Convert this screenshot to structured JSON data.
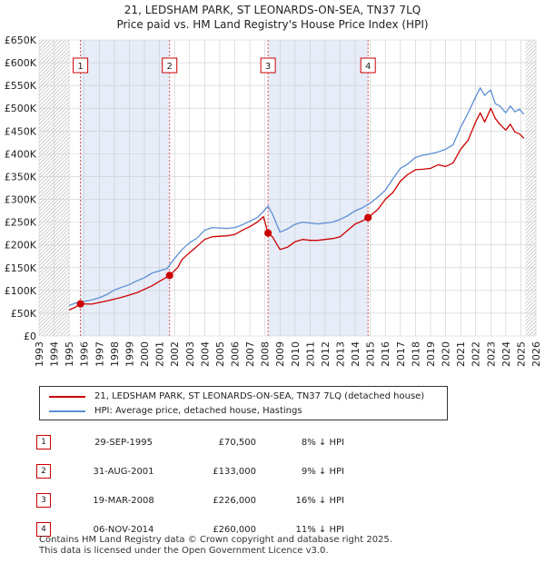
{
  "title_line1": "21, LEDSHAM PARK, ST LEONARDS-ON-SEA, TN37 7LQ",
  "title_line2": "Price paid vs. HM Land Registry's House Price Index (HPI)",
  "chart_data": {
    "type": "line",
    "title": "21, LEDSHAM PARK, ST LEONARDS-ON-SEA, TN37 7LQ",
    "subtitle": "Price paid vs. HM Land Registry's House Price Index (HPI)",
    "xlabel": "",
    "ylabel": "",
    "xlim": [
      1993,
      2026
    ],
    "ylim": [
      0,
      650000
    ],
    "y_ticks": [
      0,
      50000,
      100000,
      150000,
      200000,
      250000,
      300000,
      350000,
      400000,
      450000,
      500000,
      550000,
      600000,
      650000
    ],
    "y_tick_labels": [
      "£0",
      "£50K",
      "£100K",
      "£150K",
      "£200K",
      "£250K",
      "£300K",
      "£350K",
      "£400K",
      "£450K",
      "£500K",
      "£550K",
      "£600K",
      "£650K"
    ],
    "x_ticks": [
      1993,
      1994,
      1995,
      1996,
      1997,
      1998,
      1999,
      2000,
      2001,
      2002,
      2003,
      2004,
      2005,
      2006,
      2007,
      2008,
      2009,
      2010,
      2011,
      2012,
      2013,
      2014,
      2015,
      2016,
      2017,
      2018,
      2019,
      2020,
      2021,
      2022,
      2023,
      2024,
      2025,
      2026
    ],
    "data_range": [
      1995.0,
      2025.3
    ],
    "shaded_periods": [
      [
        1995.75,
        2001.67
      ],
      [
        2008.21,
        2014.85
      ]
    ],
    "grid": true,
    "legend_position": "below",
    "series": [
      {
        "name": "21, LEDSHAM PARK, ST LEONARDS-ON-SEA, TN37 7LQ (detached house)",
        "color": "#cc0000",
        "x": [
          1995.0,
          1995.4,
          1995.75,
          1996.5,
          1997.5,
          1998.5,
          1999.5,
          2000.5,
          2001.0,
          2001.67,
          2002.2,
          2002.5,
          2003.0,
          2003.5,
          2004.0,
          2004.5,
          2005.0,
          2005.5,
          2006.0,
          2006.5,
          2007.0,
          2007.5,
          2007.9,
          2008.21,
          2008.5,
          2009.0,
          2009.5,
          2010.0,
          2010.5,
          2011.0,
          2011.5,
          2012.0,
          2012.5,
          2013.0,
          2013.5,
          2014.0,
          2014.5,
          2014.85,
          2015.5,
          2016.0,
          2016.5,
          2017.0,
          2017.5,
          2018.0,
          2018.5,
          2019.0,
          2019.5,
          2020.0,
          2020.5,
          2021.0,
          2021.5,
          2022.0,
          2022.3,
          2022.6,
          2022.8,
          2023.0,
          2023.3,
          2023.6,
          2024.0,
          2024.3,
          2024.6,
          2024.9,
          2025.2
        ],
        "y": [
          57000,
          63000,
          70500,
          70000,
          77000,
          85000,
          95000,
          110000,
          120000,
          133000,
          150000,
          168000,
          183000,
          197000,
          212000,
          218000,
          219000,
          220000,
          223000,
          232000,
          240000,
          250000,
          262000,
          226000,
          218000,
          190000,
          195000,
          207000,
          212000,
          210000,
          210000,
          212000,
          214000,
          218000,
          232000,
          246000,
          253000,
          260000,
          278000,
          300000,
          315000,
          340000,
          355000,
          365000,
          366000,
          368000,
          376000,
          372000,
          380000,
          410000,
          430000,
          470000,
          490000,
          470000,
          485000,
          500000,
          478000,
          465000,
          452000,
          465000,
          448000,
          444000,
          434000
        ]
      },
      {
        "name": "HPI: Average price, detached house, Hastings",
        "color": "#5b8fd6",
        "x": [
          1995.0,
          1995.5,
          1996.0,
          1996.5,
          1997.0,
          1997.5,
          1998.0,
          1998.5,
          1999.0,
          1999.5,
          2000.0,
          2000.5,
          2001.0,
          2001.5,
          2002.0,
          2002.5,
          2003.0,
          2003.5,
          2004.0,
          2004.5,
          2005.0,
          2005.5,
          2006.0,
          2006.5,
          2007.0,
          2007.5,
          2007.8,
          2008.2,
          2008.5,
          2009.0,
          2009.5,
          2010.0,
          2010.5,
          2011.0,
          2011.5,
          2012.0,
          2012.5,
          2013.0,
          2013.5,
          2014.0,
          2014.5,
          2015.0,
          2015.5,
          2016.0,
          2016.5,
          2017.0,
          2017.5,
          2018.0,
          2018.5,
          2019.0,
          2019.5,
          2020.0,
          2020.5,
          2021.0,
          2021.5,
          2022.0,
          2022.3,
          2022.6,
          2022.8,
          2023.0,
          2023.3,
          2023.6,
          2024.0,
          2024.3,
          2024.6,
          2024.9,
          2025.2
        ],
        "y": [
          67000,
          73000,
          76000,
          79000,
          84000,
          91000,
          101000,
          107000,
          113000,
          121000,
          128000,
          138000,
          143000,
          148000,
          170000,
          190000,
          205000,
          215000,
          232000,
          238000,
          237000,
          236000,
          238000,
          244000,
          252000,
          260000,
          270000,
          285000,
          268000,
          228000,
          235000,
          245000,
          250000,
          248000,
          246000,
          248000,
          250000,
          256000,
          264000,
          275000,
          282000,
          292000,
          305000,
          320000,
          345000,
          368000,
          378000,
          392000,
          397000,
          400000,
          404000,
          410000,
          420000,
          458000,
          490000,
          525000,
          545000,
          528000,
          535000,
          540000,
          510000,
          505000,
          490000,
          505000,
          492000,
          498000,
          487000
        ]
      }
    ],
    "annotations": [
      {
        "label": "1",
        "x": 1995.75,
        "y": 70500
      },
      {
        "label": "2",
        "x": 2001.67,
        "y": 133000
      },
      {
        "label": "3",
        "x": 2008.21,
        "y": 226000
      },
      {
        "label": "4",
        "x": 2014.85,
        "y": 260000
      }
    ]
  },
  "legend": {
    "property": "21, LEDSHAM PARK, ST LEONARDS-ON-SEA, TN37 7LQ (detached house)",
    "hpi": "HPI: Average price, detached house, Hastings",
    "property_color": "#cc0000",
    "hpi_color": "#5b8fd6"
  },
  "sales": [
    {
      "num": "1",
      "date": "29-SEP-1995",
      "price": "£70,500",
      "hpi": "8% ↓ HPI"
    },
    {
      "num": "2",
      "date": "31-AUG-2001",
      "price": "£133,000",
      "hpi": "9% ↓ HPI"
    },
    {
      "num": "3",
      "date": "19-MAR-2008",
      "price": "£226,000",
      "hpi": "16% ↓ HPI"
    },
    {
      "num": "4",
      "date": "06-NOV-2014",
      "price": "£260,000",
      "hpi": "11% ↓ HPI"
    }
  ],
  "footer": {
    "line1": "Contains HM Land Registry data © Crown copyright and database right 2025.",
    "line2": "This data is licensed under the Open Government Licence v3.0."
  }
}
